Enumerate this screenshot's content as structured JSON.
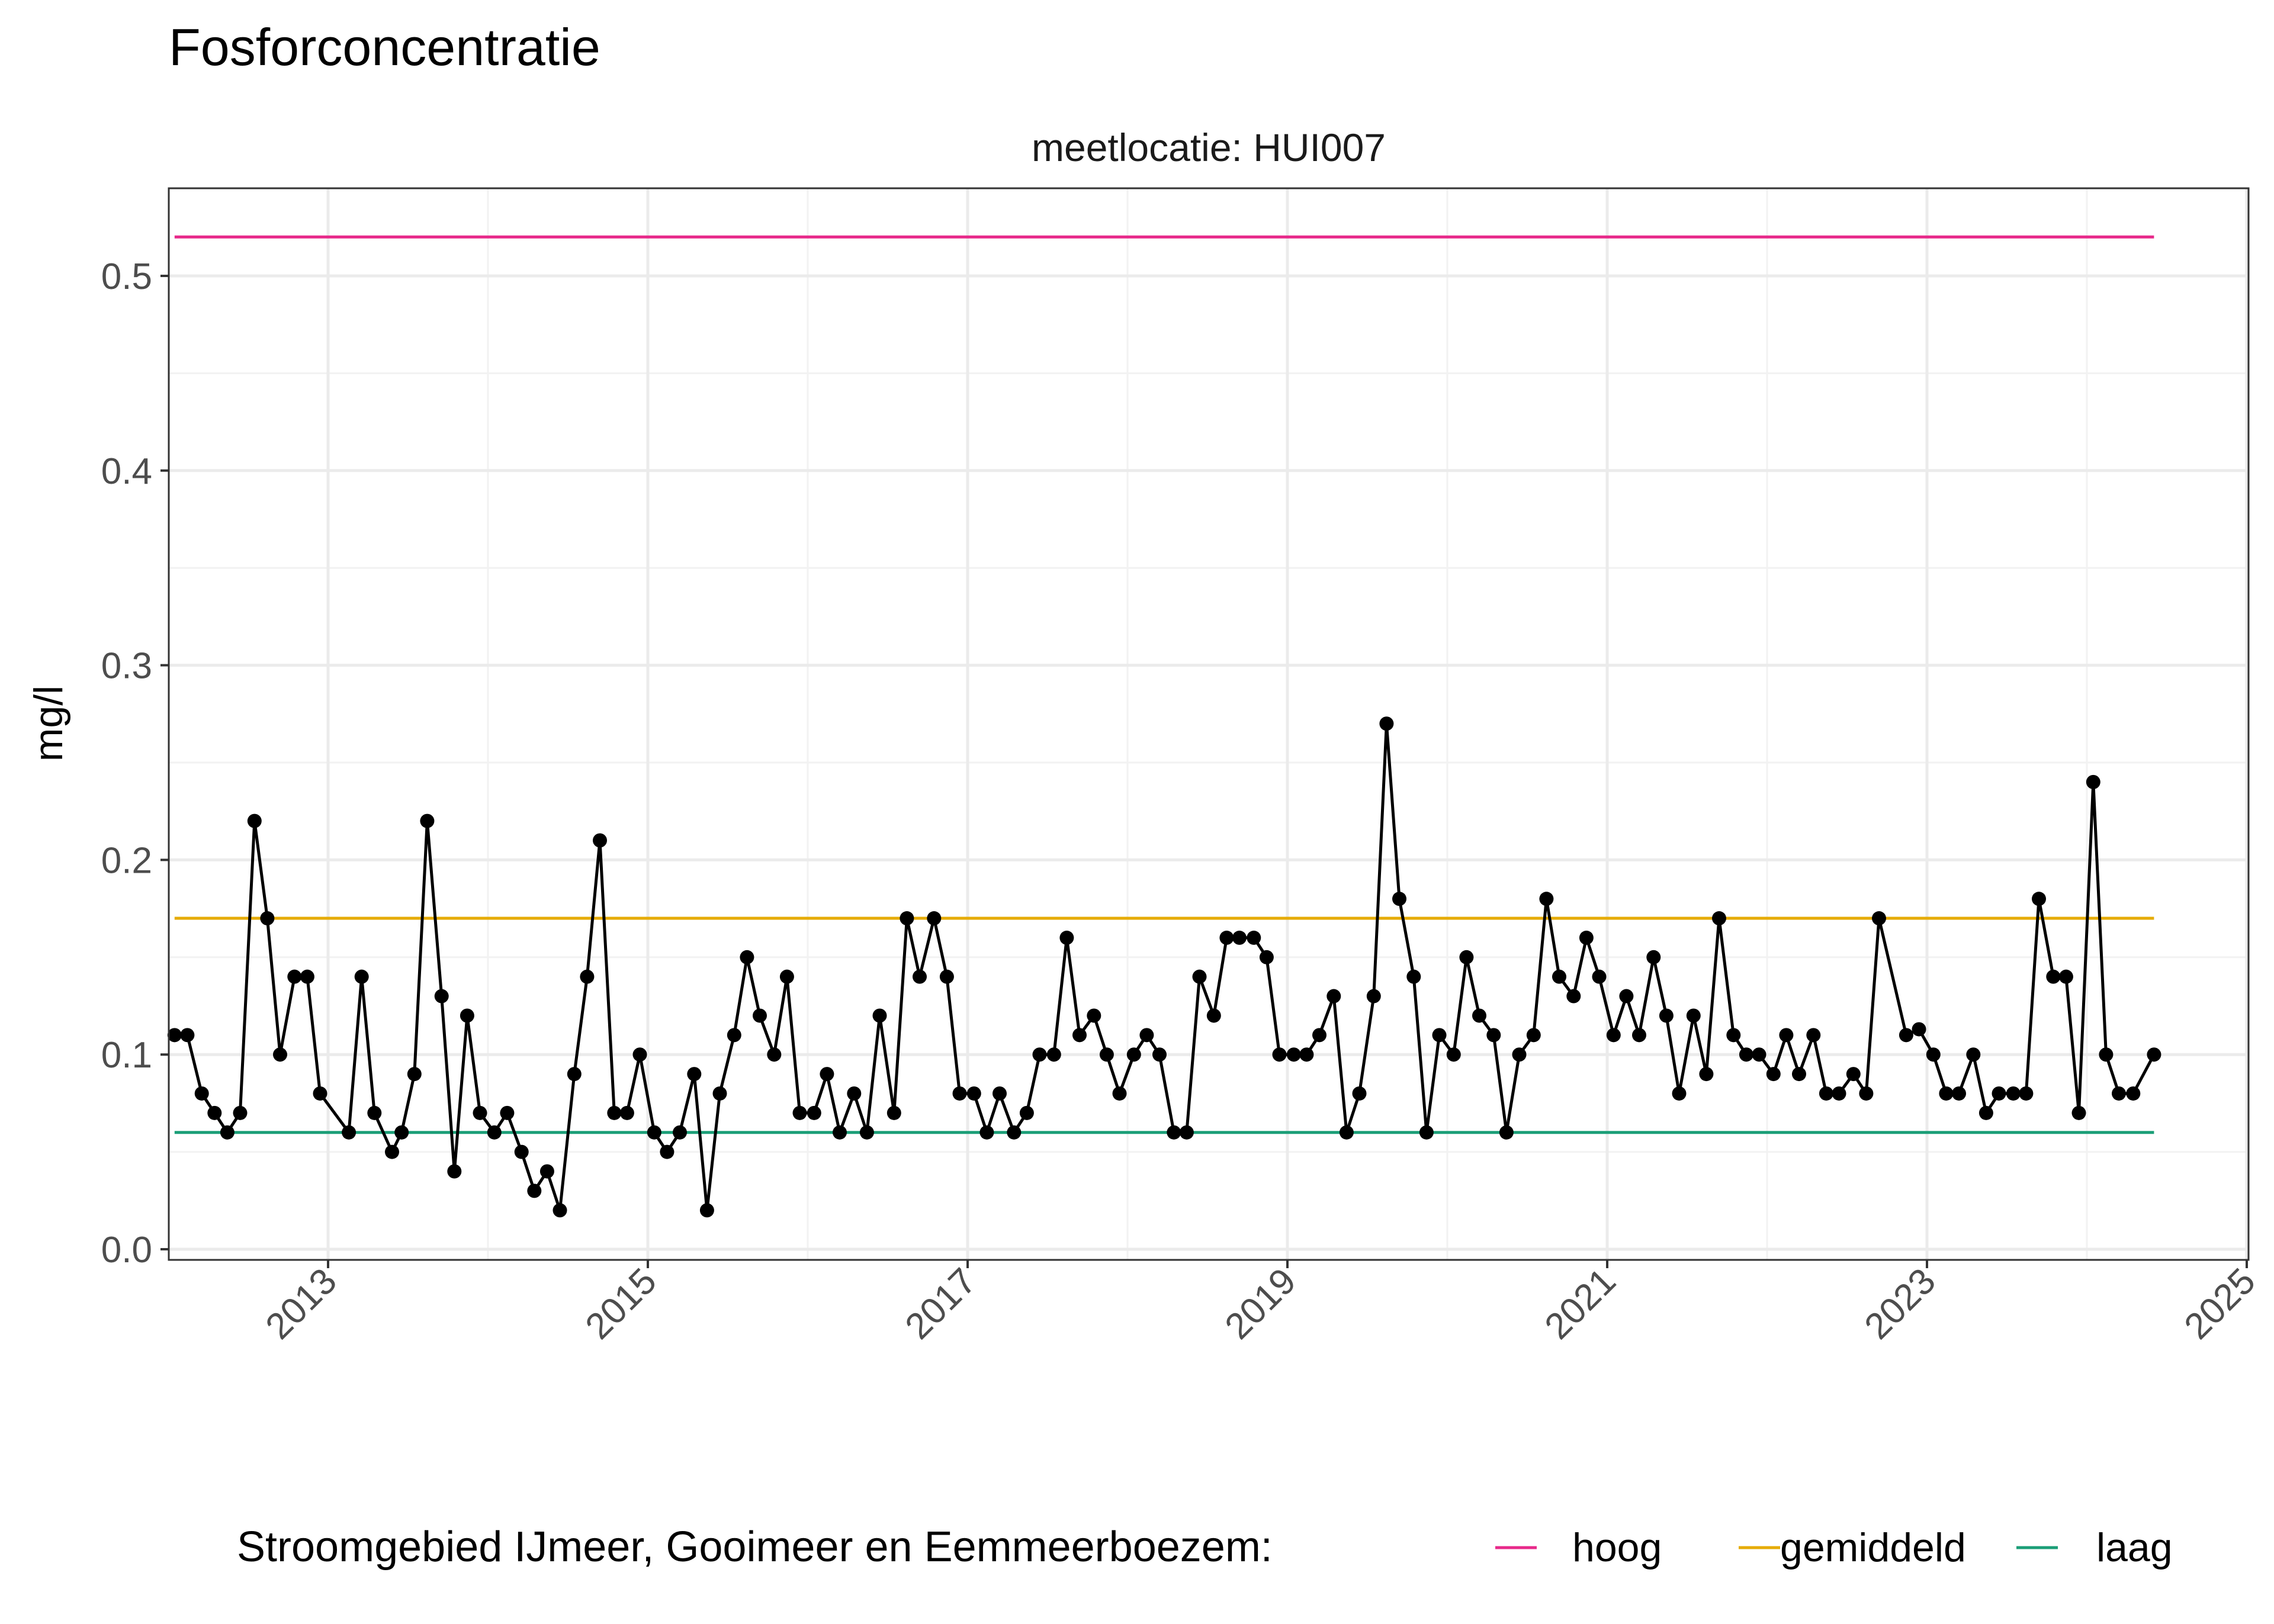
{
  "chart_data": {
    "type": "line",
    "title": "Fosforconcentratie",
    "facet_label": "meetlocatie: HUI007",
    "xlabel": "",
    "ylabel": "mg/l",
    "xlim": [
      2012.0,
      2025.0
    ],
    "ylim": [
      0.0,
      0.5
    ],
    "x_ticks": [
      "2013",
      "2015",
      "2017",
      "2019",
      "2021",
      "2023",
      "2025"
    ],
    "y_ticks": [
      "0.0",
      "0.1",
      "0.2",
      "0.3",
      "0.4",
      "0.5"
    ],
    "grid": true,
    "legend": {
      "position": "bottom",
      "title": "Stroomgebied IJmeer, Gooimeer en Eemmeerboezem:",
      "entries": [
        {
          "label": "hoog",
          "color": "#E7298A"
        },
        {
          "label": "gemiddeld",
          "color": "#E6AB02"
        },
        {
          "label": "laag",
          "color": "#1B9E77"
        }
      ]
    },
    "reference_lines": [
      {
        "name": "hoog",
        "value": 0.52,
        "color": "#E7298A",
        "x": [
          2012.04,
          2024.42
        ]
      },
      {
        "name": "gemiddeld",
        "value": 0.17,
        "color": "#E6AB02",
        "x": [
          2012.04,
          2024.42
        ]
      },
      {
        "name": "laag",
        "value": 0.06,
        "color": "#1B9E77",
        "x": [
          2012.04,
          2024.42
        ]
      }
    ],
    "series": [
      {
        "color": "#000000",
        "x": [
          2012.04,
          2012.12,
          2012.21,
          2012.29,
          2012.37,
          2012.45,
          2012.54,
          2012.62,
          2012.7,
          2012.79,
          2012.87,
          2012.95,
          2013.13,
          2013.21,
          2013.29,
          2013.4,
          2013.46,
          2013.54,
          2013.62,
          2013.71,
          2013.79,
          2013.87,
          2013.95,
          2014.04,
          2014.12,
          2014.21,
          2014.29,
          2014.37,
          2014.45,
          2014.54,
          2014.62,
          2014.7,
          2014.79,
          2014.87,
          2014.95,
          2015.04,
          2015.12,
          2015.2,
          2015.29,
          2015.37,
          2015.45,
          2015.54,
          2015.62,
          2015.7,
          2015.79,
          2015.87,
          2015.95,
          2016.04,
          2016.12,
          2016.2,
          2016.29,
          2016.37,
          2016.45,
          2016.54,
          2016.62,
          2016.7,
          2016.79,
          2016.87,
          2016.95,
          2017.04,
          2017.12,
          2017.2,
          2017.29,
          2017.37,
          2017.45,
          2017.54,
          2017.62,
          2017.7,
          2017.79,
          2017.87,
          2017.95,
          2018.04,
          2018.12,
          2018.2,
          2018.29,
          2018.37,
          2018.45,
          2018.54,
          2018.62,
          2018.7,
          2018.79,
          2018.87,
          2018.95,
          2019.04,
          2019.12,
          2019.2,
          2019.29,
          2019.37,
          2019.45,
          2019.54,
          2019.62,
          2019.7,
          2019.79,
          2019.87,
          2019.95,
          2020.04,
          2020.12,
          2020.2,
          2020.29,
          2020.37,
          2020.45,
          2020.54,
          2020.62,
          2020.7,
          2020.79,
          2020.87,
          2020.95,
          2021.04,
          2021.12,
          2021.2,
          2021.29,
          2021.37,
          2021.45,
          2021.54,
          2021.62,
          2021.7,
          2021.79,
          2021.87,
          2021.95,
          2022.04,
          2022.12,
          2022.2,
          2022.29,
          2022.37,
          2022.45,
          2022.54,
          2022.62,
          2022.7,
          2022.87,
          2022.95,
          2023.04,
          2023.12,
          2023.2,
          2023.29,
          2023.37,
          2023.45,
          2023.54,
          2023.62,
          2023.7,
          2023.79,
          2023.87,
          2023.95,
          2024.04,
          2024.12,
          2024.2,
          2024.29,
          2024.42
        ],
        "y": [
          0.11,
          0.11,
          0.08,
          0.07,
          0.06,
          0.07,
          0.22,
          0.17,
          0.1,
          0.14,
          0.14,
          0.08,
          0.06,
          0.14,
          0.07,
          0.05,
          0.06,
          0.09,
          0.22,
          0.13,
          0.04,
          0.12,
          0.07,
          0.06,
          0.07,
          0.05,
          0.03,
          0.04,
          0.02,
          0.09,
          0.14,
          0.21,
          0.07,
          0.07,
          0.1,
          0.06,
          0.05,
          0.06,
          0.09,
          0.02,
          0.08,
          0.11,
          0.15,
          0.12,
          0.1,
          0.14,
          0.07,
          0.07,
          0.09,
          0.06,
          0.08,
          0.06,
          0.12,
          0.07,
          0.17,
          0.14,
          0.17,
          0.14,
          0.08,
          0.08,
          0.06,
          0.08,
          0.06,
          0.07,
          0.1,
          0.1,
          0.16,
          0.11,
          0.12,
          0.1,
          0.08,
          0.1,
          0.11,
          0.1,
          0.06,
          0.06,
          0.14,
          0.12,
          0.16,
          0.16,
          0.16,
          0.15,
          0.1,
          0.1,
          0.1,
          0.11,
          0.13,
          0.06,
          0.08,
          0.13,
          0.27,
          0.18,
          0.14,
          0.06,
          0.11,
          0.1,
          0.15,
          0.12,
          0.11,
          0.06,
          0.1,
          0.11,
          0.18,
          0.14,
          0.13,
          0.16,
          0.14,
          0.11,
          0.13,
          0.11,
          0.15,
          0.12,
          0.08,
          0.12,
          0.09,
          0.17,
          0.11,
          0.1,
          0.1,
          0.09,
          0.11,
          0.09,
          0.11,
          0.08,
          0.08,
          0.09,
          0.08,
          0.17,
          0.11,
          0.113,
          0.1,
          0.08,
          0.08,
          0.1,
          0.07,
          0.08,
          0.08,
          0.08,
          0.18,
          0.14,
          0.14,
          0.07,
          0.24,
          0.1,
          0.08,
          0.08,
          0.1
        ]
      }
    ]
  }
}
